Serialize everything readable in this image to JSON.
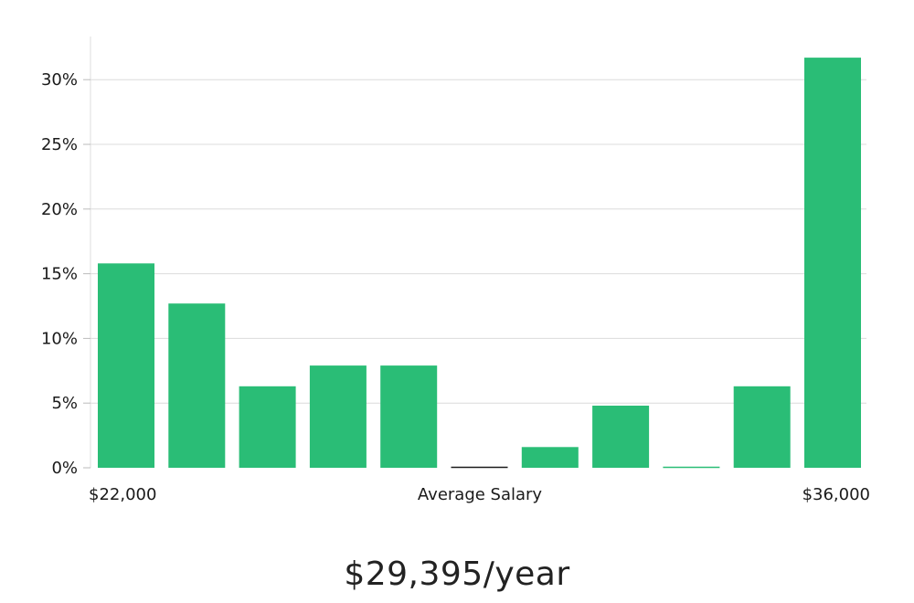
{
  "chart_data": {
    "type": "bar",
    "title": "",
    "xlabel": "Average Salary",
    "x_min_label": "$22,000",
    "x_max_label": "$36,000",
    "ylabel": "",
    "ylim": [
      0,
      33
    ],
    "yticks": [
      0,
      5,
      10,
      15,
      20,
      25,
      30
    ],
    "ytick_format": "%",
    "grid": true,
    "bar_color": "#2abd76",
    "zero_bar_color": "#1a1a1a",
    "series": [
      {
        "values": [
          15.8,
          12.7,
          6.3,
          7.9,
          7.9,
          0,
          1.6,
          4.8,
          0,
          6.3,
          31.7
        ]
      }
    ]
  },
  "headline": "$29,395/year"
}
